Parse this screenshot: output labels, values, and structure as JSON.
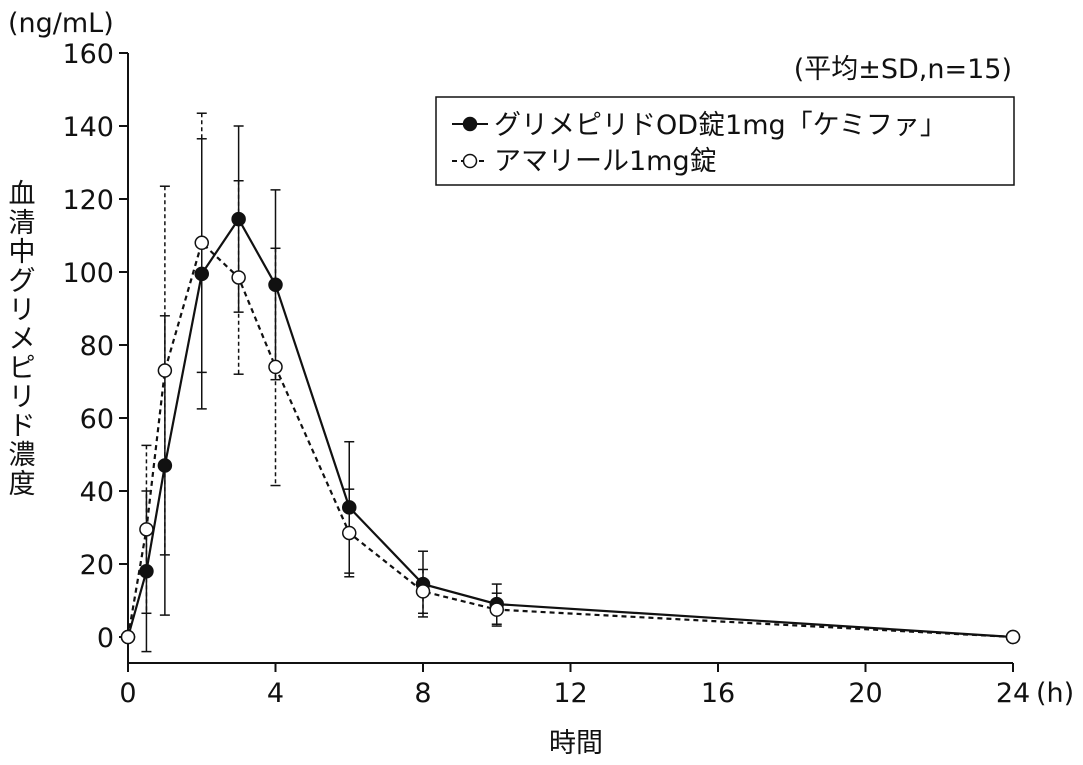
{
  "chart_data": {
    "type": "line",
    "y_unit": "(ng/mL)",
    "ylabel_chars": [
      "血",
      "清",
      "中",
      "グ",
      "リ",
      "メ",
      "ピ",
      "リ",
      "ド",
      "濃",
      "度"
    ],
    "xlabel": "時間",
    "x_unit": "(h)",
    "note": "(平均±SD,n=15)",
    "xlim": [
      0,
      24
    ],
    "ylim": [
      0,
      160
    ],
    "x_ticks": [
      0,
      4,
      8,
      12,
      16,
      20,
      24
    ],
    "y_ticks": [
      0,
      20,
      40,
      60,
      80,
      100,
      120,
      140,
      160
    ],
    "legend_position": "top-right",
    "grid": false,
    "series": [
      {
        "name": "グリメピリドOD錠1mg「ケミファ」",
        "marker": "filled-circle",
        "line_style": "solid",
        "color": "#111111",
        "x": [
          0,
          0.5,
          1,
          2,
          3,
          4,
          6,
          8,
          10,
          24
        ],
        "y": [
          0,
          18,
          47,
          99.5,
          114.5,
          96.5,
          35.5,
          14.5,
          9,
          0
        ],
        "sd": [
          0,
          22,
          41,
          37,
          25.5,
          26,
          18,
          9,
          5.5,
          0
        ]
      },
      {
        "name": "アマリール1mg錠",
        "marker": "open-circle",
        "line_style": "dashed",
        "color": "#111111",
        "x": [
          0,
          0.5,
          1,
          2,
          3,
          4,
          6,
          8,
          10,
          24
        ],
        "y": [
          0,
          29.5,
          73,
          108,
          98.5,
          74,
          28.5,
          12.5,
          7.5,
          0
        ],
        "sd": [
          0,
          23,
          50.5,
          35.5,
          26.5,
          32.5,
          12,
          6,
          4.5,
          0
        ]
      }
    ]
  }
}
